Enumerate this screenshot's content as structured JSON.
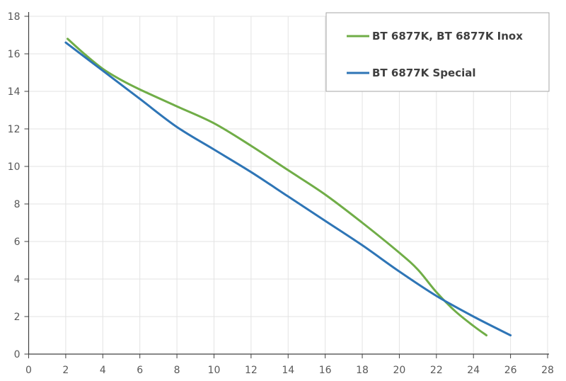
{
  "chart_data": {
    "type": "line",
    "title": "",
    "xlabel": "",
    "ylabel": "",
    "xlim": [
      0,
      28
    ],
    "ylim": [
      0,
      18
    ],
    "xticks": [
      "0",
      "2",
      "4",
      "6",
      "8",
      "10",
      "12",
      "14",
      "16",
      "18",
      "20",
      "22",
      "24",
      "26",
      "28"
    ],
    "yticks": [
      "0",
      "2",
      "4",
      "6",
      "8",
      "10",
      "12",
      "14",
      "16",
      "18"
    ],
    "grid": true,
    "legend_position": "top-right",
    "series": [
      {
        "name": "BT 6877K, BT 6877K Inox",
        "color": "#70AD47",
        "x": [
          2.1,
          3,
          4,
          5,
          6,
          8,
          10,
          12,
          14,
          16,
          18,
          20,
          21,
          22,
          23,
          24,
          24.7
        ],
        "y": [
          16.8,
          16.0,
          15.2,
          14.6,
          14.1,
          13.2,
          12.3,
          11.1,
          9.8,
          8.5,
          7.0,
          5.4,
          4.5,
          3.3,
          2.3,
          1.5,
          1.0
        ]
      },
      {
        "name": "BT 6877K Special",
        "color": "#2E75B6",
        "x": [
          2,
          4,
          6,
          8,
          10,
          12,
          14,
          16,
          18,
          20,
          22,
          24,
          26
        ],
        "y": [
          16.6,
          15.1,
          13.6,
          12.1,
          10.9,
          9.7,
          8.4,
          7.1,
          5.8,
          4.4,
          3.1,
          2.0,
          1.0
        ]
      }
    ]
  }
}
